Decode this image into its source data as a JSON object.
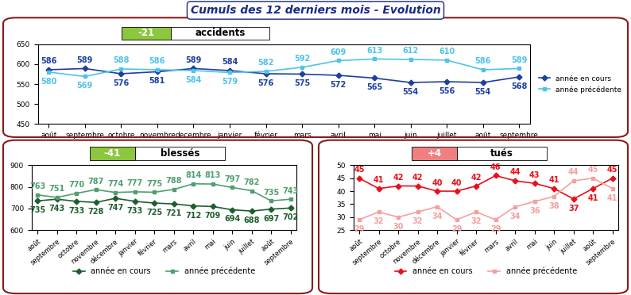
{
  "title": "Cumuls des 12 derniers mois - Evolution",
  "chart_data": [
    {
      "type": "line",
      "title": "accidents",
      "annotation": "-21",
      "annotation_color": "#8dc63f",
      "categories": [
        "août",
        "septembre",
        "octobre",
        "novembre",
        "decembre",
        "janvier",
        "février",
        "mars",
        "avril",
        "mai",
        "juin",
        "juillet",
        "août",
        "septembre"
      ],
      "series": [
        {
          "name": "année en cours",
          "color": "#1f3f9f",
          "marker": "diamond",
          "line_style": "solid",
          "values": [
            586,
            589,
            576,
            581,
            589,
            584,
            576,
            575,
            572,
            565,
            554,
            556,
            554,
            568
          ]
        },
        {
          "name": "année précédente",
          "color": "#4fc3e8",
          "marker": "square",
          "line_style": "solid",
          "values": [
            580,
            569,
            588,
            586,
            584,
            579,
            582,
            592,
            609,
            613,
            612,
            610,
            586,
            589
          ]
        }
      ],
      "ylim": [
        450,
        650
      ],
      "yticks": [
        450,
        500,
        550,
        600,
        650
      ],
      "data_labels": true,
      "legend": "right"
    },
    {
      "type": "line",
      "title": "blessés",
      "annotation": "-41",
      "annotation_color": "#8dc63f",
      "categories": [
        "août",
        "septembre",
        "octobre",
        "novembre",
        "décembre",
        "janvier",
        "février",
        "mars",
        "avril",
        "mai",
        "juin",
        "juillet",
        "août",
        "septembre"
      ],
      "series": [
        {
          "name": "année en cours",
          "color": "#1e5e2e",
          "marker": "diamond",
          "line_style": "solid",
          "values": [
            735,
            743,
            733,
            728,
            747,
            733,
            725,
            721,
            712,
            709,
            694,
            688,
            697,
            702
          ]
        },
        {
          "name": "année précédente",
          "color": "#4f9f6f",
          "marker": "square",
          "line_style": "solid",
          "values": [
            763,
            751,
            770,
            787,
            774,
            777,
            775,
            788,
            814,
            813,
            797,
            782,
            735,
            743
          ]
        }
      ],
      "ylim": [
        600,
        900
      ],
      "yticks": [
        600,
        700,
        800,
        900
      ],
      "data_labels": true,
      "legend": "bottom"
    },
    {
      "type": "line",
      "title": "tués",
      "annotation": "+4",
      "annotation_color": "#f08080",
      "categories": [
        "août",
        "septembre",
        "octobre",
        "novembre",
        "décembre",
        "janvier",
        "février",
        "mars",
        "avril",
        "mai",
        "juin",
        "juillet",
        "août",
        "septembre"
      ],
      "series": [
        {
          "name": "année en cours",
          "color": "#e8101a",
          "marker": "diamond",
          "line_style": "solid",
          "values": [
            45,
            41,
            42,
            42,
            40,
            40,
            42,
            46,
            44,
            43,
            41,
            37,
            41,
            45
          ]
        },
        {
          "name": "année précédente",
          "color": "#f4a0a0",
          "marker": "square",
          "line_style": "solid",
          "values": [
            29,
            32,
            30,
            32,
            34,
            29,
            32,
            29,
            34,
            36,
            38,
            44,
            45,
            41
          ]
        }
      ],
      "ylim": [
        25,
        50
      ],
      "yticks": [
        25,
        30,
        35,
        40,
        45,
        50
      ],
      "data_labels": true,
      "legend": "bottom"
    }
  ]
}
